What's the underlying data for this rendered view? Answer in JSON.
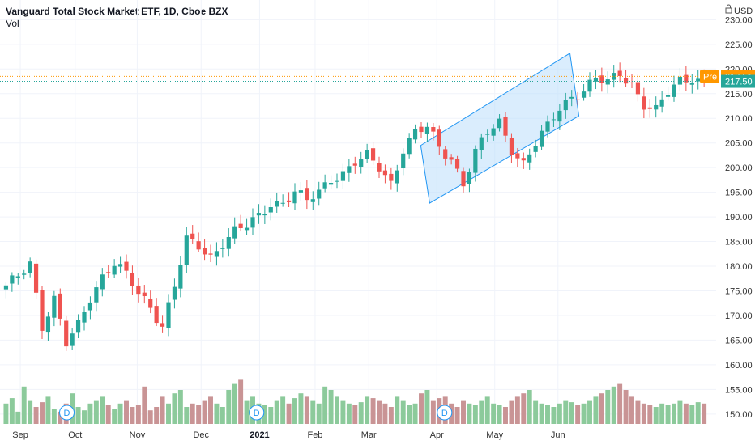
{
  "chart_data": {
    "type": "candlestick",
    "title": "Vanguard Total Stock Market ETF, 1D, Cboe BZX",
    "volume_label": "Vol",
    "currency": "USD",
    "currency_icon": "lock-icon",
    "y_ticks": [
      150,
      155,
      160,
      165,
      170,
      175,
      180,
      185,
      190,
      195,
      200,
      205,
      210,
      215,
      220,
      225,
      230
    ],
    "y_tick_labels": [
      "150.00",
      "155.00",
      "160.00",
      "165.00",
      "170.00",
      "175.00",
      "180.00",
      "185.00",
      "190.00",
      "195.00",
      "200.00",
      "205.00",
      "210.00",
      "215.00",
      "220.00",
      "225.00",
      "230.00"
    ],
    "ylim": [
      148,
      234
    ],
    "x_labels": [
      "Sep",
      "Oct",
      "Nov",
      "Dec",
      "2021",
      "Feb",
      "Mar",
      "Apr",
      "May",
      "Jun"
    ],
    "x_label_bold": [
      false,
      false,
      false,
      false,
      true,
      false,
      false,
      false,
      false,
      false
    ],
    "last_price": {
      "label": "217.50",
      "value": 217.5,
      "color": "#26a69a"
    },
    "pre_market": {
      "tag": "Pre",
      "label": "218.51",
      "value": 218.51,
      "color": "#ff9800"
    },
    "dividend_marker": {
      "label": "D",
      "count": 3
    },
    "channel": {
      "type": "parallel-channel",
      "fill": "#bbdefb",
      "stroke": "#2196f3",
      "points": [
        [
          70.5,
          204.5
        ],
        [
          95.5,
          223.2
        ],
        [
          97.0,
          210.5
        ],
        [
          72.0,
          192.8
        ]
      ]
    },
    "colors": {
      "up": "#26a69a",
      "down": "#ef5350",
      "up_vol": "#8cca9b",
      "down_vol": "#c99495"
    },
    "anchors": [
      [
        0,
        175.5
      ],
      [
        2,
        178
      ],
      [
        4,
        181
      ],
      [
        6,
        168
      ],
      [
        8,
        173
      ],
      [
        10,
        164
      ],
      [
        12,
        168
      ],
      [
        14,
        174
      ],
      [
        16,
        178
      ],
      [
        18,
        180.5
      ],
      [
        20,
        178
      ],
      [
        22,
        174.5
      ],
      [
        24,
        172
      ],
      [
        26,
        168
      ],
      [
        28,
        176
      ],
      [
        30,
        185
      ],
      [
        32,
        184
      ],
      [
        34,
        182
      ],
      [
        36,
        185
      ],
      [
        38,
        187
      ],
      [
        40,
        188
      ],
      [
        42,
        190
      ],
      [
        44,
        193
      ],
      [
        46,
        193
      ],
      [
        48,
        195
      ],
      [
        50,
        193
      ],
      [
        52,
        195
      ],
      [
        54,
        198
      ],
      [
        56,
        199
      ],
      [
        58,
        201
      ],
      [
        60,
        202
      ],
      [
        62,
        200
      ],
      [
        64,
        197
      ],
      [
        66,
        204
      ],
      [
        68,
        207
      ],
      [
        70,
        208
      ],
      [
        72,
        204
      ],
      [
        74,
        202
      ],
      [
        76,
        197
      ],
      [
        78,
        203
      ],
      [
        80,
        207
      ],
      [
        82,
        209
      ],
      [
        84,
        204
      ],
      [
        86,
        201
      ],
      [
        88,
        205
      ],
      [
        90,
        208
      ],
      [
        92,
        212
      ],
      [
        94,
        214.5
      ],
      [
        96,
        216
      ],
      [
        98,
        218
      ],
      [
        100,
        217
      ],
      [
        102,
        219
      ],
      [
        104,
        217
      ],
      [
        106,
        213
      ],
      [
        108,
        211.5
      ],
      [
        110,
        215
      ],
      [
        112,
        217.5
      ],
      [
        114,
        218.5
      ],
      [
        116,
        217.5
      ]
    ],
    "volume_pct": [
      30,
      38,
      18,
      55,
      35,
      25,
      32,
      40,
      22,
      18,
      30,
      45,
      25,
      20,
      30,
      35,
      40,
      28,
      22,
      30,
      35,
      25,
      28,
      55,
      20,
      25,
      40,
      30,
      45,
      50,
      25,
      30,
      28,
      35,
      40,
      30,
      25,
      50,
      60,
      65,
      35,
      40,
      30,
      28,
      25,
      35,
      40,
      30,
      38,
      45,
      40,
      35,
      30,
      55,
      50,
      40,
      35,
      30,
      28,
      32,
      40,
      38,
      35,
      30,
      25,
      40,
      35,
      28,
      30,
      45,
      50,
      35,
      38,
      40,
      30,
      25,
      35,
      30,
      28,
      35,
      40,
      30,
      28,
      25,
      35,
      40,
      45,
      50,
      35,
      30,
      28,
      25,
      30,
      35,
      32,
      28,
      30,
      35,
      40,
      45,
      50,
      55,
      60,
      50,
      40,
      35,
      30,
      28,
      25,
      30,
      28,
      30,
      35,
      30,
      28,
      32,
      30
    ]
  }
}
